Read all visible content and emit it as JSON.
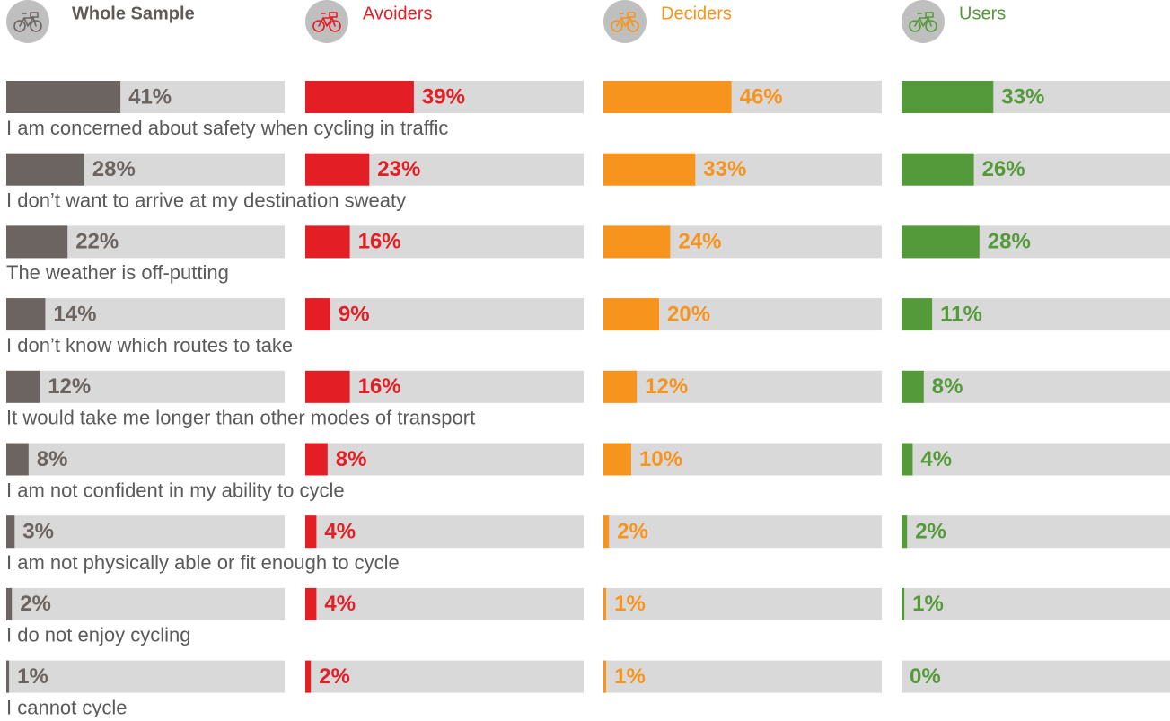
{
  "chart_data": {
    "type": "bar",
    "categories": [
      "I am concerned about safety when cycling in traffic",
      "I don’t want to arrive at my destination sweaty",
      "The weather is off-putting",
      "I don’t know which routes to take",
      "It would take me longer than other modes of transport",
      "I am not confident in my ability to cycle",
      "I am not physically able or fit enough to cycle",
      "I do not enjoy cycling",
      "I cannot cycle"
    ],
    "xlim": [
      0,
      100
    ],
    "track_color": "#d9d9d9",
    "series": [
      {
        "name": "Whole Sample",
        "color": "#6b6461",
        "values": [
          41,
          28,
          22,
          14,
          12,
          8,
          3,
          2,
          1
        ],
        "value_labels": [
          "41%",
          "28%",
          "22%",
          "14%",
          "12%",
          "8%",
          "3%",
          "2%",
          "1%"
        ]
      },
      {
        "name": "Avoiders",
        "color": "#e31e24",
        "values": [
          39,
          23,
          16,
          9,
          16,
          8,
          4,
          4,
          2
        ],
        "value_labels": [
          "39%",
          "23%",
          "16%",
          "9%",
          "16%",
          "8%",
          "4%",
          "4%",
          "2%"
        ]
      },
      {
        "name": "Deciders",
        "color": "#f7941d",
        "values": [
          46,
          33,
          24,
          20,
          12,
          10,
          2,
          1,
          1
        ],
        "value_labels": [
          "46%",
          "33%",
          "24%",
          "20%",
          "12%",
          "10%",
          "2%",
          "1%",
          "1%"
        ]
      },
      {
        "name": "Users",
        "color": "#559a3a",
        "values": [
          33,
          26,
          28,
          11,
          8,
          4,
          2,
          1,
          0
        ],
        "value_labels": [
          "33%",
          "26%",
          "28%",
          "11%",
          "8%",
          "4%",
          "2%",
          "1%",
          "0%"
        ]
      }
    ]
  }
}
